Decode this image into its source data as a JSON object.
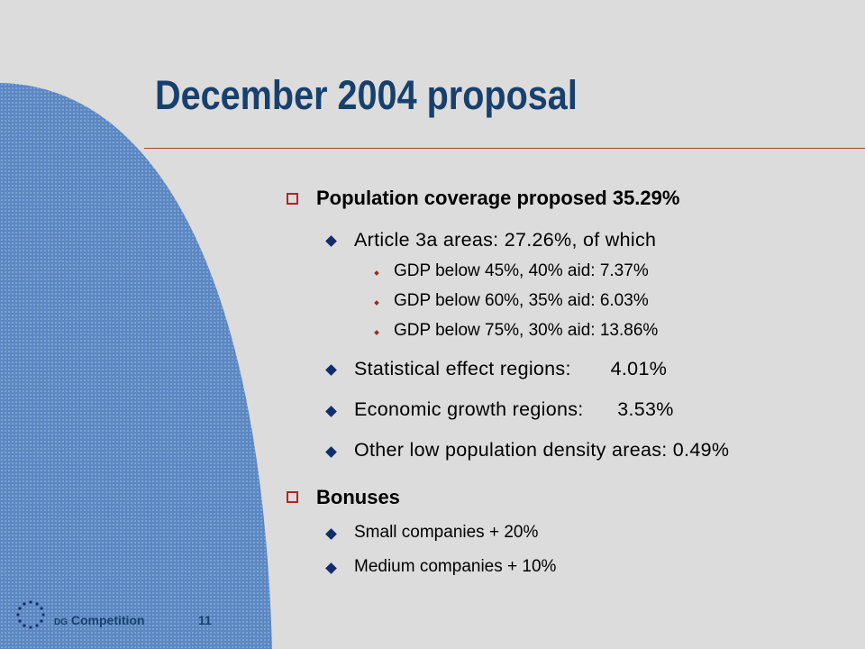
{
  "slide": {
    "title": "December 2004 proposal",
    "sections": [
      {
        "label": "Population coverage proposed 35.29%",
        "items": [
          {
            "label": "Article 3a areas: 27.26%, of which",
            "subitems": [
              "GDP below 45%, 40% aid:   7.37%",
              "GDP below 60%, 35% aid:   6.03%",
              "GDP below 75%, 30% aid: 13.86%"
            ]
          },
          {
            "label": "Statistical effect regions:       4.01%"
          },
          {
            "label": "Economic growth regions:      3.53%"
          },
          {
            "label": "Other low population density areas: 0.49%"
          }
        ]
      },
      {
        "label": "Bonuses",
        "items": [
          {
            "label": "Small companies + 20%"
          },
          {
            "label": "Medium companies + 10%"
          }
        ]
      }
    ]
  },
  "footer": {
    "dg": "DG",
    "department": "Competition",
    "page_number": "11"
  },
  "colors": {
    "background": "#dcdcdc",
    "title": "#17406d",
    "accent_red": "#b02525",
    "bullet_navy": "#0f2e6b",
    "shape_blue": "#5b87c2"
  },
  "icons": {
    "logo": "eu-stars-icon"
  }
}
